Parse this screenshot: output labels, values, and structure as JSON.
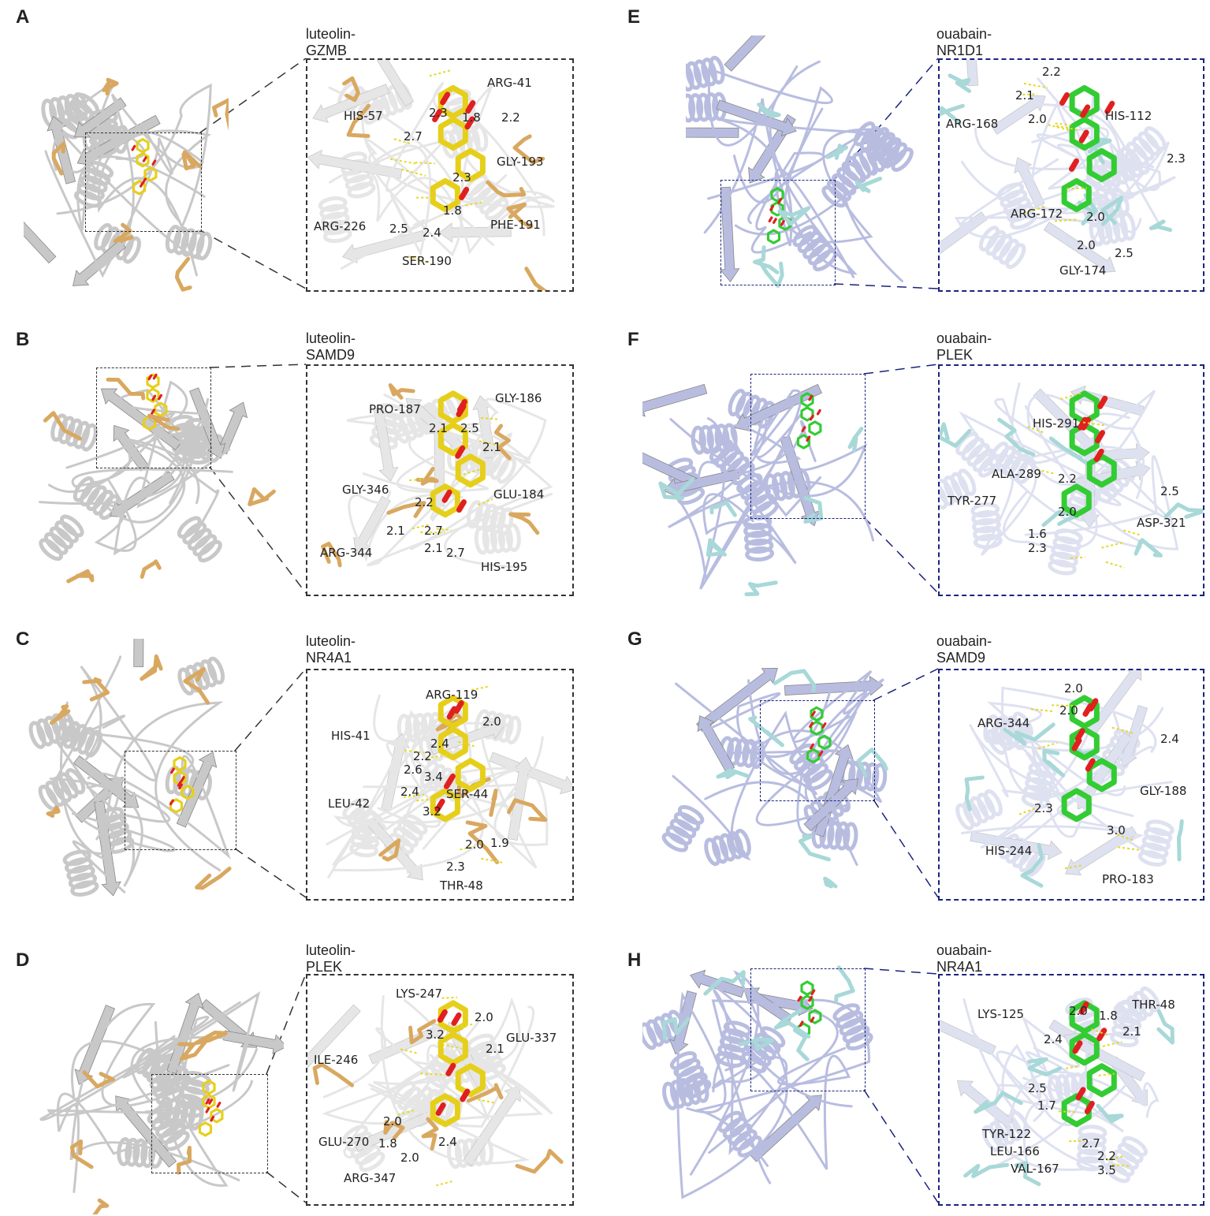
{
  "theme": {
    "luteolin_color": "#e6cf1a",
    "luteolin_residue_color": "#d9a860",
    "ouabain_color": "#33cc33",
    "ouabain_residue_color": "#a8d8d8",
    "oxygen_color": "#e02020",
    "hbond_color": "#e6d820",
    "left_protein_color": "#c8c8c8",
    "right_protein_color": "#b8bde0",
    "left_box_color": "#333333",
    "right_box_color": "#1a237e"
  },
  "panels": [
    {
      "id": "A",
      "letter": "A",
      "title": "luteolin-GZMB",
      "side": "left",
      "labels": [
        {
          "text": "HIS-57"
        },
        {
          "text": "ARG-41"
        },
        {
          "text": "GLY-193"
        },
        {
          "text": "ARG-226"
        },
        {
          "text": "PHE-191"
        },
        {
          "text": "SER-190"
        },
        {
          "text": "2.3"
        },
        {
          "text": "1.8"
        },
        {
          "text": "2.2"
        },
        {
          "text": "2.7"
        },
        {
          "text": "2.3"
        },
        {
          "text": "1.8"
        },
        {
          "text": "2.5"
        },
        {
          "text": "2.4"
        }
      ]
    },
    {
      "id": "B",
      "letter": "B",
      "title": "luteolin-SAMD9",
      "side": "left",
      "labels": [
        {
          "text": "PRO-187"
        },
        {
          "text": "GLY-186"
        },
        {
          "text": "GLU-184"
        },
        {
          "text": "GLY-346"
        },
        {
          "text": "ARG-344"
        },
        {
          "text": "HIS-195"
        },
        {
          "text": "2.1"
        },
        {
          "text": "2.5"
        },
        {
          "text": "2.1"
        },
        {
          "text": "2.2"
        },
        {
          "text": "2.1"
        },
        {
          "text": "2.7"
        },
        {
          "text": "2.1"
        },
        {
          "text": "2.7"
        }
      ]
    },
    {
      "id": "C",
      "letter": "C",
      "title": "luteolin-NR4A1",
      "side": "left",
      "labels": [
        {
          "text": "ARG-119"
        },
        {
          "text": "HIS-41"
        },
        {
          "text": "SER-44"
        },
        {
          "text": "LEU-42"
        },
        {
          "text": "THR-48"
        },
        {
          "text": "2.0"
        },
        {
          "text": "2.4"
        },
        {
          "text": "2.2"
        },
        {
          "text": "2.6"
        },
        {
          "text": "3.4"
        },
        {
          "text": "2.4"
        },
        {
          "text": "3.2"
        },
        {
          "text": "2.0"
        },
        {
          "text": "1.9"
        },
        {
          "text": "2.3"
        }
      ]
    },
    {
      "id": "D",
      "letter": "D",
      "title": "luteolin-PLEK",
      "side": "left",
      "labels": [
        {
          "text": "LYS-247"
        },
        {
          "text": "GLU-337"
        },
        {
          "text": "ILE-246"
        },
        {
          "text": "GLU-270"
        },
        {
          "text": "ARG-347"
        },
        {
          "text": "2.0"
        },
        {
          "text": "3.2"
        },
        {
          "text": "2.1"
        },
        {
          "text": "2.0"
        },
        {
          "text": "1.8"
        },
        {
          "text": "2.4"
        },
        {
          "text": "2.0"
        }
      ]
    },
    {
      "id": "E",
      "letter": "E",
      "title": "ouabain-NR1D1",
      "side": "right",
      "labels": [
        {
          "text": "ARG-168"
        },
        {
          "text": "HIS-112"
        },
        {
          "text": "ARG-172"
        },
        {
          "text": "GLY-174"
        },
        {
          "text": "2.2"
        },
        {
          "text": "2.1"
        },
        {
          "text": "2.0"
        },
        {
          "text": "2.3"
        },
        {
          "text": "2.0"
        },
        {
          "text": "2.0"
        },
        {
          "text": "2.5"
        }
      ]
    },
    {
      "id": "F",
      "letter": "F",
      "title": "ouabain-PLEK",
      "side": "right",
      "labels": [
        {
          "text": "HIS-291"
        },
        {
          "text": "ALA-289"
        },
        {
          "text": "TYR-277"
        },
        {
          "text": "ASP-321"
        },
        {
          "text": "2.2"
        },
        {
          "text": "2.5"
        },
        {
          "text": "2.0"
        },
        {
          "text": "1.6"
        },
        {
          "text": "2.3"
        }
      ]
    },
    {
      "id": "G",
      "letter": "G",
      "title": "ouabain-SAMD9",
      "side": "right",
      "labels": [
        {
          "text": "ARG-344"
        },
        {
          "text": "GLY-188"
        },
        {
          "text": "HIS-244"
        },
        {
          "text": "PRO-183"
        },
        {
          "text": "2.0"
        },
        {
          "text": "2.0"
        },
        {
          "text": "2.4"
        },
        {
          "text": "2.3"
        },
        {
          "text": "3.0"
        }
      ]
    },
    {
      "id": "H",
      "letter": "H",
      "title": "ouabain-NR4A1",
      "side": "right",
      "labels": [
        {
          "text": "LYS-125"
        },
        {
          "text": "THR-48"
        },
        {
          "text": "TYR-122"
        },
        {
          "text": "LEU-166"
        },
        {
          "text": "VAL-167"
        },
        {
          "text": "2.0"
        },
        {
          "text": "1.8"
        },
        {
          "text": "2.4"
        },
        {
          "text": "2.1"
        },
        {
          "text": "2.5"
        },
        {
          "text": "1.7"
        },
        {
          "text": "2.7"
        },
        {
          "text": "2.2"
        },
        {
          "text": "3.5"
        }
      ]
    }
  ]
}
